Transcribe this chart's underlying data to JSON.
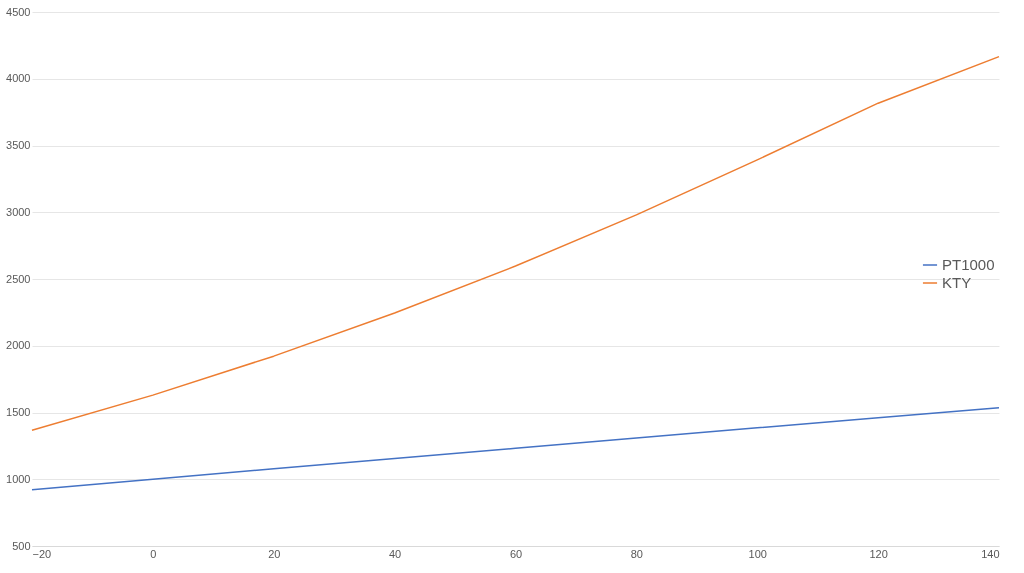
{
  "chart_data": {
    "type": "line",
    "x": [
      -20,
      0,
      20,
      40,
      60,
      80,
      100,
      120,
      140
    ],
    "series": [
      {
        "name": "PT1000",
        "color": "#4472c4",
        "values": [
          922,
          1000,
          1078,
          1155,
          1232,
          1309,
          1385,
          1461,
          1536
        ]
      },
      {
        "name": "KTY",
        "color": "#ed7d31",
        "values": [
          1367,
          1630,
          1922,
          2245,
          2597,
          2980,
          3392,
          3817,
          4166
        ]
      }
    ],
    "xlim": [
      -20,
      140
    ],
    "xticks": [
      -20,
      0,
      20,
      40,
      60,
      80,
      100,
      120,
      140
    ],
    "ylim": [
      500,
      4500
    ],
    "yticks": [
      500,
      1000,
      1500,
      2000,
      2500,
      3000,
      3500,
      4000,
      4500
    ],
    "grid": "y",
    "legend": "right",
    "marker": "none",
    "line_style": "solid"
  }
}
